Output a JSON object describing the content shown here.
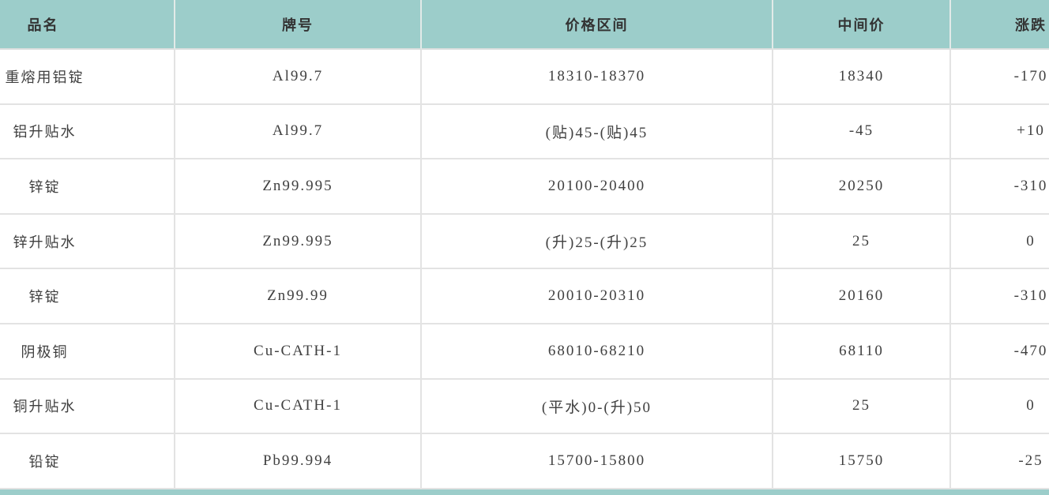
{
  "colors": {
    "header_bg": "#9ccdca",
    "row_bg": "#ffffff",
    "grid_line": "#e3e3e3",
    "header_text": "#333333",
    "body_text": "#404040"
  },
  "table": {
    "columns": [
      {
        "key": "name",
        "label": "品名"
      },
      {
        "key": "grade",
        "label": "牌号"
      },
      {
        "key": "range",
        "label": "价格区间"
      },
      {
        "key": "mid",
        "label": "中间价"
      },
      {
        "key": "change",
        "label": "涨跌"
      }
    ],
    "rows": [
      {
        "name": "重熔用铝锭",
        "grade": "Al99.7",
        "range": "18310-18370",
        "mid": "18340",
        "change": "-170"
      },
      {
        "name": "铝升贴水",
        "grade": "Al99.7",
        "range": "(贴)45-(贴)45",
        "mid": "-45",
        "change": "+10"
      },
      {
        "name": "锌锭",
        "grade": "Zn99.995",
        "range": "20100-20400",
        "mid": "20250",
        "change": "-310"
      },
      {
        "name": "锌升贴水",
        "grade": "Zn99.995",
        "range": "(升)25-(升)25",
        "mid": "25",
        "change": "0"
      },
      {
        "name": "锌锭",
        "grade": "Zn99.99",
        "range": "20010-20310",
        "mid": "20160",
        "change": "-310"
      },
      {
        "name": "阴极铜",
        "grade": "Cu-CATH-1",
        "range": "68010-68210",
        "mid": "68110",
        "change": "-470"
      },
      {
        "name": "铜升贴水",
        "grade": "Cu-CATH-1",
        "range": "(平水)0-(升)50",
        "mid": "25",
        "change": "0"
      },
      {
        "name": "铅锭",
        "grade": "Pb99.994",
        "range": "15700-15800",
        "mid": "15750",
        "change": "-25"
      }
    ]
  }
}
